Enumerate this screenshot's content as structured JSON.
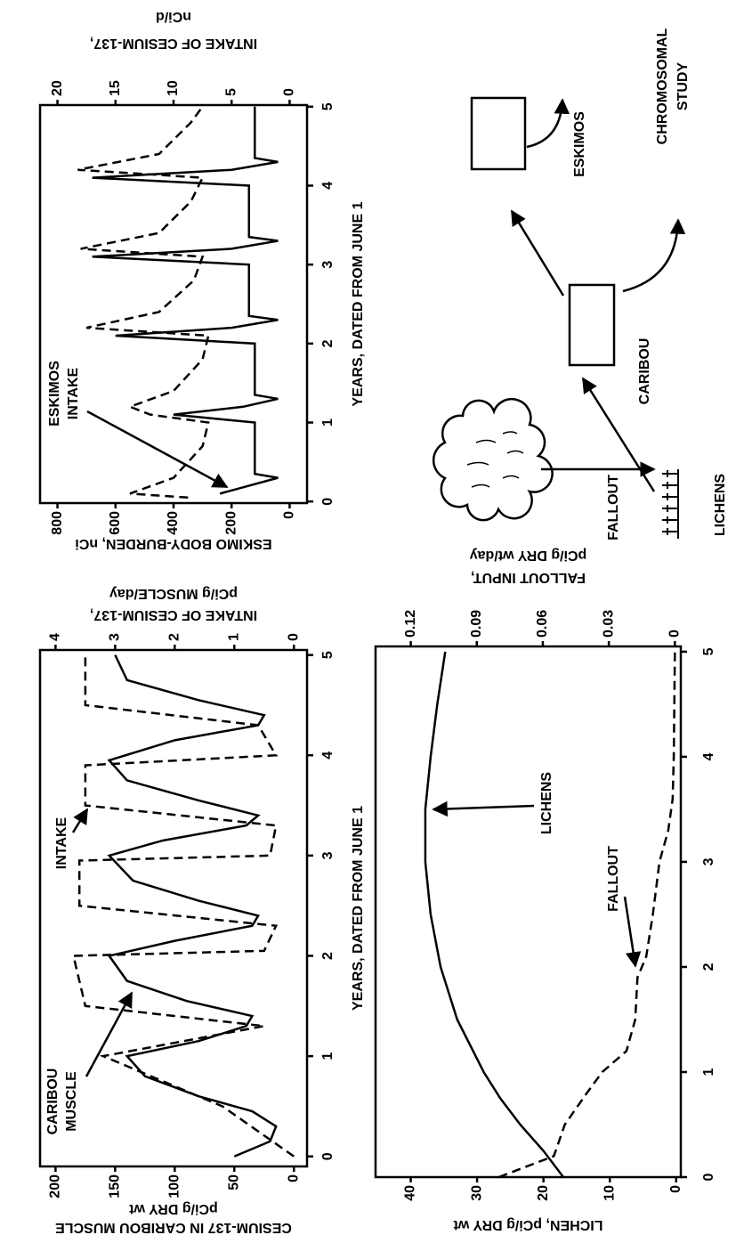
{
  "chart_data": [
    {
      "type": "line",
      "xlabel": "YEARS, DATED FROM JUNE 1",
      "ylabel": [
        "CESIUM-137 IN CARIBOU MUSCLE",
        "pCi/g DRY wt"
      ],
      "y2label": [
        "INTAKE OF CESIUM-137,",
        "pCi/g MUSCLE/day"
      ],
      "xlim": [
        -0.1,
        5.05
      ],
      "xticks": [
        0,
        1,
        2,
        3,
        4,
        5
      ],
      "ylim": [
        -11,
        213
      ],
      "yticks": [
        0,
        50,
        100,
        150,
        200
      ],
      "y2lim": [
        -0.22,
        4.26
      ],
      "y2ticks": [
        0,
        1,
        2,
        3,
        4
      ],
      "annotations": [
        [
          "CARIBOU",
          "MUSCLE"
        ],
        [
          "INTAKE"
        ]
      ],
      "series": [
        {
          "color": "#000000",
          "linestyle": "solid",
          "x": [
            0,
            0.15,
            0.3,
            0.45,
            0.6,
            0.8,
            1.0,
            1.15,
            1.3,
            1.4,
            1.55,
            1.75,
            2.0,
            2.15,
            2.3,
            2.4,
            2.55,
            2.75,
            3.0,
            3.15,
            3.3,
            3.4,
            3.55,
            3.75,
            3.95,
            4.15,
            4.3,
            4.4,
            4.55,
            4.75,
            5.0
          ],
          "values": [
            50,
            20,
            15,
            35,
            80,
            125,
            140,
            80,
            40,
            35,
            90,
            140,
            155,
            100,
            35,
            30,
            80,
            135,
            155,
            110,
            40,
            30,
            80,
            140,
            155,
            100,
            30,
            25,
            80,
            140,
            150
          ]
        },
        {
          "color": "#000000",
          "linestyle": "dashed",
          "axis": "y2",
          "x": [
            0,
            0.5,
            1.0,
            1.3,
            1.5,
            2.0,
            2.05,
            2.3,
            2.5,
            2.95,
            3.0,
            3.3,
            3.5,
            3.9,
            4.0,
            4.3,
            4.5,
            5.0
          ],
          "values": [
            0,
            1.2,
            3.2,
            0.5,
            3.5,
            3.7,
            0.5,
            0.3,
            3.6,
            3.6,
            0.4,
            0.3,
            3.5,
            3.5,
            0.3,
            0.6,
            3.5,
            3.5
          ]
        }
      ]
    },
    {
      "type": "line",
      "xlabel": "YEARS, DATED FROM JUNE 1",
      "ylabel": [
        "ESKIMO BODY-BURDEN, nCi"
      ],
      "y2label": [
        "INTAKE OF CESIUM-137,",
        "nCi/d"
      ],
      "xlim": [
        -0.02,
        5.02
      ],
      "xticks": [
        0,
        1,
        2,
        3,
        4,
        5
      ],
      "ylim": [
        -60,
        860
      ],
      "yticks": [
        0,
        200,
        400,
        600,
        800
      ],
      "y2lim": [
        -1.5,
        21.5
      ],
      "y2ticks": [
        0,
        5,
        10,
        15,
        20
      ],
      "annotations": [
        [
          "ESKIMOS",
          "INTAKE"
        ]
      ],
      "series": [
        {
          "color": "#000000",
          "linestyle": "dashed",
          "x": [
            0.05,
            0.1,
            0.3,
            0.7,
            1.0,
            1.1,
            1.2,
            1.4,
            1.8,
            2.1,
            2.2,
            2.4,
            2.8,
            3.1,
            3.2,
            3.4,
            3.8,
            4.1,
            4.2,
            4.4,
            4.8,
            5.0
          ],
          "values": [
            350,
            550,
            400,
            300,
            280,
            480,
            550,
            400,
            300,
            280,
            700,
            450,
            330,
            300,
            720,
            450,
            340,
            300,
            730,
            450,
            340,
            300
          ]
        },
        {
          "color": "#000000",
          "linestyle": "solid",
          "axis": "y2",
          "x": [
            0.1,
            0.3,
            0.35,
            1.0,
            1.1,
            1.2,
            1.3,
            1.35,
            2.0,
            2.1,
            2.2,
            2.3,
            2.35,
            3.0,
            3.1,
            3.2,
            3.3,
            3.35,
            4.0,
            4.1,
            4.2,
            4.3,
            4.35,
            5.0
          ],
          "values": [
            6,
            1,
            3,
            3,
            10,
            4,
            1,
            3,
            3,
            15,
            5,
            1,
            3.5,
            3.5,
            17,
            5,
            1,
            3.5,
            3.5,
            17,
            5,
            1,
            3,
            3
          ]
        }
      ]
    },
    {
      "type": "line",
      "ylabel": [
        "LICHEN, pCi/g DRY wt"
      ],
      "y2label": [
        "FALLOUT INPUT,",
        "pCi/g DRY wt/day"
      ],
      "xlim": [
        0,
        5.05
      ],
      "xticks": [
        0,
        1,
        2,
        3,
        4,
        5
      ],
      "ylim": [
        -0.7,
        45.3
      ],
      "yticks": [
        0,
        10,
        20,
        30,
        40
      ],
      "y2lim": [
        -0.0027,
        0.136
      ],
      "y2ticks": [
        0,
        0.03,
        0.06,
        0.09,
        0.12
      ],
      "annotations": [
        [
          "LICHENS"
        ],
        [
          "FALLOUT"
        ]
      ],
      "series": [
        {
          "color": "#000000",
          "linestyle": "solid",
          "x": [
            0,
            0.25,
            0.5,
            0.75,
            1,
            1.5,
            2,
            2.5,
            3,
            3.5,
            4,
            4.5,
            5
          ],
          "values": [
            17,
            20,
            23.5,
            26.5,
            29,
            33,
            35.5,
            37,
            37.8,
            37.8,
            37,
            36,
            34.8
          ]
        },
        {
          "color": "#000000",
          "linestyle": "dashed",
          "axis": "y2",
          "x": [
            0,
            0.2,
            0.5,
            0.8,
            1.0,
            1.2,
            1.5,
            1.9,
            2.1,
            2.5,
            3.0,
            3.3,
            3.6,
            4,
            5
          ],
          "values": [
            0.08,
            0.055,
            0.05,
            0.04,
            0.033,
            0.022,
            0.018,
            0.017,
            0.013,
            0.01,
            0.007,
            0.003,
            0.001,
            0.0005,
            0
          ]
        }
      ]
    }
  ],
  "diagram": {
    "fallout": "FALLOUT",
    "lichens": "LICHENS",
    "caribou": "CARIBOU",
    "eskimos": "ESKIMOS",
    "study": [
      "CHROMOSOMAL",
      "STUDY"
    ]
  }
}
